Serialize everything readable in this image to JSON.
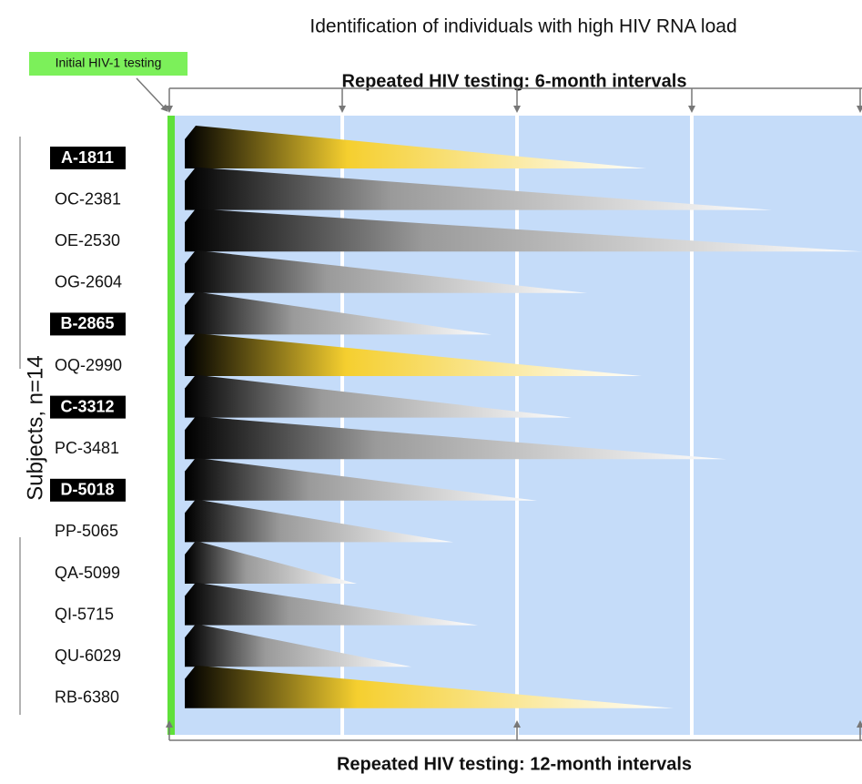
{
  "title": "Identification of individuals with high HIV RNA load",
  "initial_label": "Initial HIV-1 testing",
  "top_note": "Repeated HIV testing: 6-month intervals",
  "bottom_note": "Repeated HIV testing: 12-month intervals",
  "y_label": "Subjects, n=14",
  "subjects": [
    {
      "label": "A-1811",
      "boxed": true,
      "tint": "#f5cf2f"
    },
    {
      "label": "OC-2381",
      "boxed": false,
      "tint": "#9a9a9a"
    },
    {
      "label": "OE-2530",
      "boxed": false,
      "tint": "#9a9a9a"
    },
    {
      "label": "OG-2604",
      "boxed": false,
      "tint": "#9a9a9a"
    },
    {
      "label": "B-2865",
      "boxed": true,
      "tint": "#9a9a9a"
    },
    {
      "label": "OQ-2990",
      "boxed": false,
      "tint": "#f5cf2f"
    },
    {
      "label": "C-3312",
      "boxed": true,
      "tint": "#9a9a9a"
    },
    {
      "label": "PC-3481",
      "boxed": false,
      "tint": "#9a9a9a"
    },
    {
      "label": "D-5018",
      "boxed": true,
      "tint": "#9a9a9a"
    },
    {
      "label": "PP-5065",
      "boxed": false,
      "tint": "#9a9a9a"
    },
    {
      "label": "QA-5099",
      "boxed": false,
      "tint": "#9a9a9a"
    },
    {
      "label": "QI-5715",
      "boxed": false,
      "tint": "#9a9a9a"
    },
    {
      "label": "QU-6029",
      "boxed": false,
      "tint": "#9a9a9a"
    },
    {
      "label": "RB-6380",
      "boxed": false,
      "tint": "#f5cf2f"
    }
  ]
}
